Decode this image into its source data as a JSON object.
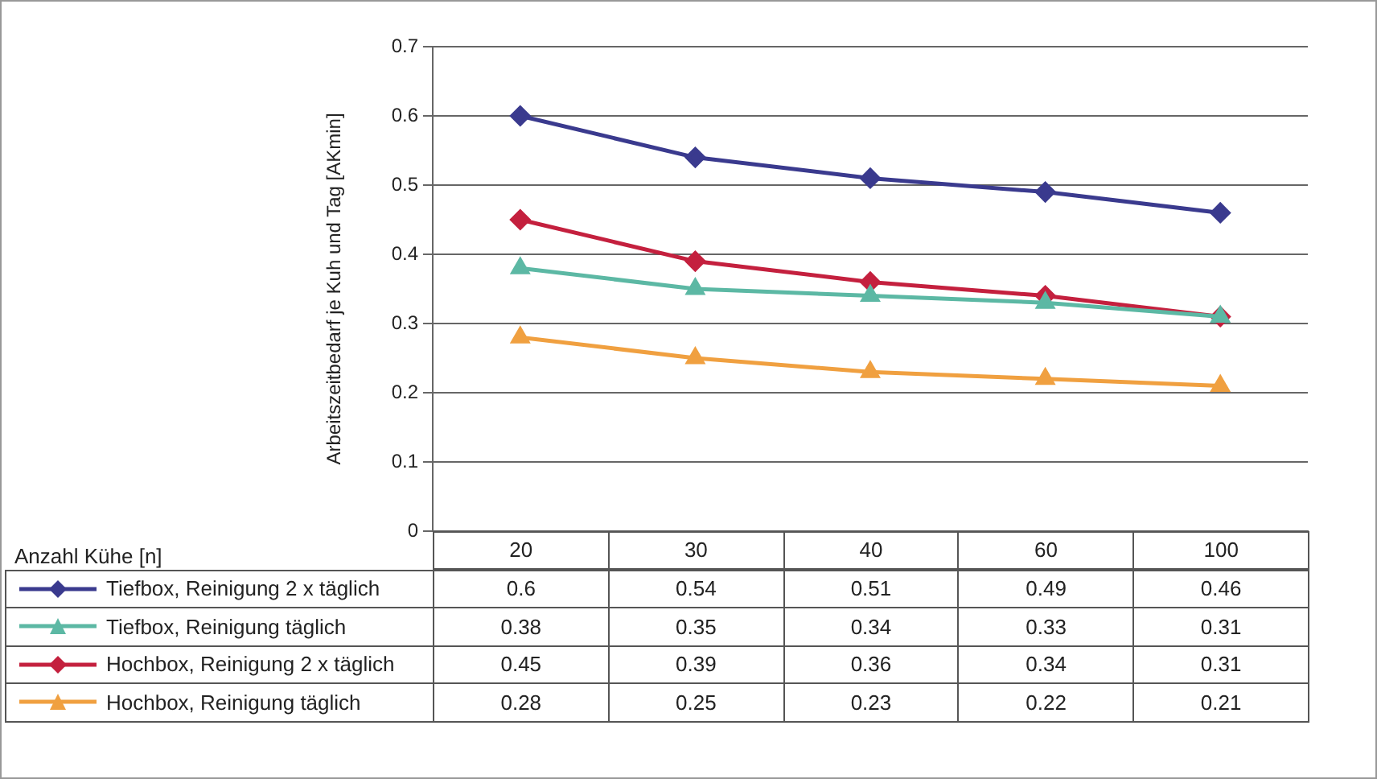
{
  "chart_data": {
    "type": "line",
    "annotations": [
      "Anzahl Kühe [n]"
    ],
    "ylabel": "Arbeitszeitbedarf je Kuh und Tag [AKmin]",
    "categories": [
      "20",
      "30",
      "40",
      "60",
      "100"
    ],
    "series": [
      {
        "name": "Tiefbox, Reinigung 2 x täglich",
        "color": "#3a3a8e",
        "marker": "diamond",
        "values": [
          0.6,
          0.54,
          0.51,
          0.49,
          0.46
        ]
      },
      {
        "name": "Tiefbox, Reinigung täglich",
        "color": "#5cb8a4",
        "marker": "triangle",
        "values": [
          0.38,
          0.35,
          0.34,
          0.33,
          0.31
        ]
      },
      {
        "name": "Hochbox, Reinigung 2 x täglich",
        "color": "#c4203e",
        "marker": "diamond",
        "values": [
          0.45,
          0.39,
          0.36,
          0.34,
          0.31
        ]
      },
      {
        "name": "Hochbox, Reinigung täglich",
        "color": "#f0a040",
        "marker": "triangle",
        "values": [
          0.28,
          0.25,
          0.23,
          0.22,
          0.21
        ]
      }
    ],
    "ylim": [
      0,
      0.7
    ],
    "yticks": [
      0,
      0.1,
      0.2,
      0.3,
      0.4,
      0.5,
      0.6,
      0.7
    ],
    "grid": "y",
    "legend": "bottom",
    "data_labels": true
  }
}
